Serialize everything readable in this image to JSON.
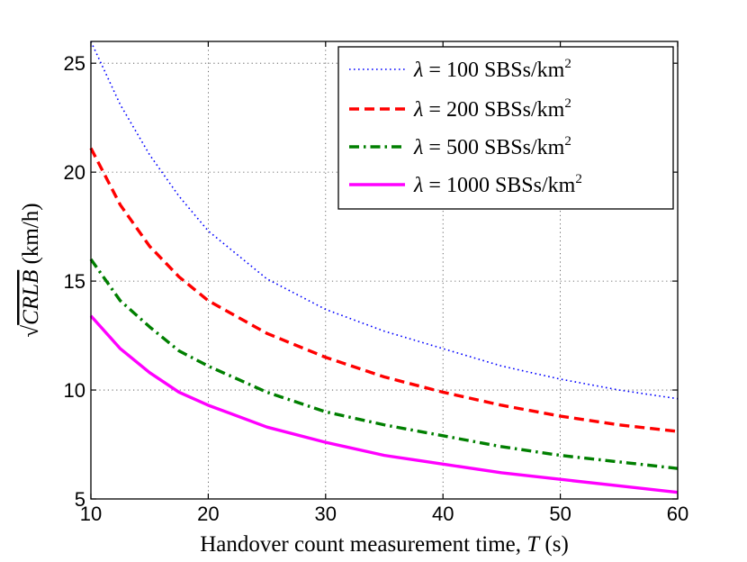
{
  "chart_data": {
    "type": "line",
    "title": "",
    "xlabel": "Handover count measurement time, T (s)",
    "xlabel_prefix": "Handover count measurement time, ",
    "xlabel_var": "T",
    "xlabel_suffix": " (s)",
    "ylabel": "√CRLB (km/h)",
    "ylabel_radical": "√",
    "ylabel_var": "CRLB",
    "ylabel_suffix": " (km/h)",
    "xlim": [
      10,
      60
    ],
    "ylim": [
      5,
      26
    ],
    "xticks": [
      10,
      20,
      30,
      40,
      50,
      60
    ],
    "yticks": [
      5,
      10,
      15,
      20,
      25
    ],
    "grid": true,
    "legend_position": "top-right",
    "x": [
      10,
      12.5,
      15,
      17.5,
      20,
      25,
      30,
      35,
      40,
      45,
      50,
      55,
      60
    ],
    "series": [
      {
        "name": "λ = 100 SBSs/km²",
        "lambda_symbol": "λ",
        "label_value": "= 100 SBSs/km",
        "superscript": "2",
        "color": "#0000ff",
        "style": "dotted",
        "values": [
          26.0,
          23.1,
          20.8,
          18.9,
          17.3,
          15.1,
          13.7,
          12.7,
          11.9,
          11.1,
          10.5,
          10.0,
          9.6
        ]
      },
      {
        "name": "λ = 200 SBSs/km²",
        "lambda_symbol": "λ",
        "label_value": "= 200 SBSs/km",
        "superscript": "2",
        "color": "#ff0000",
        "style": "dashed",
        "values": [
          21.1,
          18.5,
          16.6,
          15.2,
          14.1,
          12.6,
          11.5,
          10.6,
          9.9,
          9.3,
          8.8,
          8.4,
          8.1
        ]
      },
      {
        "name": "λ = 500 SBSs/km²",
        "lambda_symbol": "λ",
        "label_value": "= 500 SBSs/km",
        "superscript": "2",
        "color": "#007f00",
        "style": "dashdot",
        "values": [
          16.0,
          14.1,
          12.9,
          11.8,
          11.1,
          9.9,
          9.0,
          8.4,
          7.9,
          7.4,
          7.0,
          6.7,
          6.4
        ]
      },
      {
        "name": "λ = 1000 SBSs/km²",
        "lambda_symbol": "λ",
        "label_value": "= 1000 SBSs/km",
        "superscript": "2",
        "color": "#ff00ff",
        "style": "solid",
        "values": [
          13.4,
          11.9,
          10.8,
          9.9,
          9.3,
          8.3,
          7.6,
          7.0,
          6.6,
          6.2,
          5.9,
          5.6,
          5.3
        ]
      }
    ]
  }
}
